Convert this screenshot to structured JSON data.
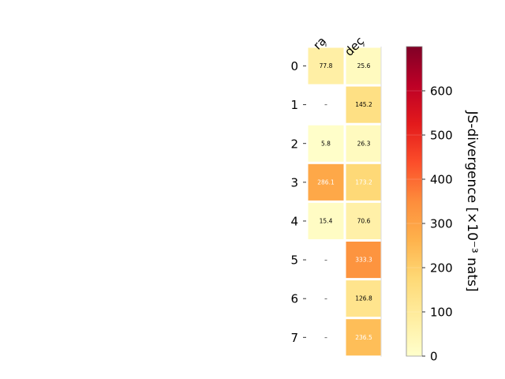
{
  "chart_data": {
    "type": "heatmap",
    "title": "",
    "columns": [
      "ra",
      "dec"
    ],
    "rows": [
      "0",
      "1",
      "2",
      "3",
      "4",
      "5",
      "6",
      "7"
    ],
    "values": [
      [
        77.8,
        25.6
      ],
      [
        null,
        145.2
      ],
      [
        5.8,
        26.3
      ],
      [
        286.1,
        173.2
      ],
      [
        15.4,
        70.6
      ],
      [
        null,
        333.3
      ],
      [
        null,
        126.8
      ],
      [
        null,
        236.5
      ]
    ],
    "cell_labels": [
      [
        "77.8",
        "25.6"
      ],
      [
        "–",
        "145.2"
      ],
      [
        "5.8",
        "26.3"
      ],
      [
        "286.1",
        "173.2"
      ],
      [
        "15.4",
        "70.6"
      ],
      [
        "–",
        "333.3"
      ],
      [
        "–",
        "126.8"
      ],
      [
        "–",
        "236.5"
      ]
    ],
    "colorbar": {
      "label": "JS-divergence [×10⁻³ nats]",
      "range": [
        0,
        700
      ],
      "ticks": [
        0,
        100,
        200,
        300,
        400,
        500,
        600
      ],
      "tick_labels": [
        "0",
        "100",
        "200",
        "300",
        "400",
        "500",
        "600"
      ],
      "colormap": "YlOrRd"
    }
  }
}
